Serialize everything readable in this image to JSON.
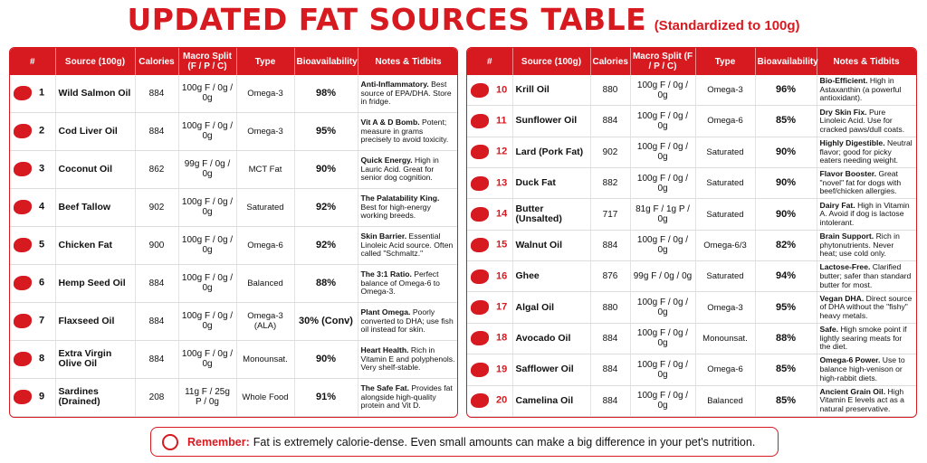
{
  "header": {
    "title": "UPDATED FAT SOURCES TABLE",
    "subtitle": "(Standardized to 100g)"
  },
  "tables": [
    {
      "columns": [
        "#",
        "Source (100g)",
        "Calories",
        "Macro Split (F / P / C)",
        "Type",
        "Bioavailability",
        "Notes & Tidbits"
      ],
      "rows": [
        {
          "no": 1,
          "source": "Wild Salmon Oil",
          "calories": 884,
          "macro": "100g F / 0g / 0g",
          "type": "Omega-3",
          "bioavailability": "98%",
          "notes_title": "Anti-Inflammatory.",
          "notes": "Best source of EPA/DHA. Store in fridge."
        },
        {
          "no": 2,
          "source": "Cod Liver Oil",
          "calories": 884,
          "macro": "100g F / 0g / 0g",
          "type": "Omega-3",
          "bioavailability": "95%",
          "notes_title": "Vit A & D Bomb.",
          "notes": "Potent; measure in grams precisely to avoid toxicity."
        },
        {
          "no": 3,
          "source": "Coconut Oil",
          "calories": 862,
          "macro": "99g F / 0g / 0g",
          "type": "MCT Fat",
          "bioavailability": "90%",
          "notes_title": "Quick Energy.",
          "notes": "High in Lauric Acid. Great for senior dog cognition."
        },
        {
          "no": 4,
          "source": "Beef Tallow",
          "calories": 902,
          "macro": "100g F / 0g / 0g",
          "type": "Saturated",
          "bioavailability": "92%",
          "notes_title": "The Palatability King.",
          "notes": "Best for high-energy working breeds."
        },
        {
          "no": 5,
          "source": "Chicken Fat",
          "calories": 900,
          "macro": "100g F / 0g / 0g",
          "type": "Omega-6",
          "bioavailability": "92%",
          "notes_title": "Skin Barrier.",
          "notes": "Essential Linoleic Acid source. Often called \"Schmaltz.\""
        },
        {
          "no": 6,
          "source": "Hemp Seed Oil",
          "calories": 884,
          "macro": "100g F / 0g / 0g",
          "type": "Balanced",
          "bioavailability": "88%",
          "notes_title": "The 3:1 Ratio.",
          "notes": "Perfect balance of Omega-6 to Omega-3."
        },
        {
          "no": 7,
          "source": "Flaxseed Oil",
          "calories": 884,
          "macro": "100g F / 0g / 0g",
          "type": "Omega-3 (ALA)",
          "bioavailability": "30% (Conv)",
          "notes_title": "Plant Omega.",
          "notes": "Poorly converted to DHA; use fish oil instead for skin."
        },
        {
          "no": 8,
          "source": "Extra Virgin Olive Oil",
          "calories": 884,
          "macro": "100g F / 0g / 0g",
          "type": "Monounsat.",
          "bioavailability": "90%",
          "notes_title": "Heart Health.",
          "notes": "Rich in Vitamin E and polyphenols. Very shelf-stable."
        },
        {
          "no": 9,
          "source": "Sardines (Drained)",
          "calories": 208,
          "macro": "11g F / 25g P / 0g",
          "type": "Whole Food",
          "bioavailability": "91%",
          "notes_title": "The Safe Fat.",
          "notes": "Provides fat alongside high-quality protein and Vit D."
        }
      ]
    },
    {
      "columns": [
        "#",
        "Source (100g)",
        "Calories",
        "Macro Split (F / P / C)",
        "Type",
        "Bioavailability",
        "Notes & Tidbits"
      ],
      "rows": [
        {
          "no": 10,
          "source": "Krill Oil",
          "calories": 880,
          "macro": "100g F / 0g / 0g",
          "type": "Omega-3",
          "bioavailability": "96%",
          "notes_title": "Bio-Efficient.",
          "notes": "High in Astaxanthin (a powerful antioxidant)."
        },
        {
          "no": 11,
          "source": "Sunflower Oil",
          "calories": 884,
          "macro": "100g F / 0g / 0g",
          "type": "Omega-6",
          "bioavailability": "85%",
          "notes_title": "Dry Skin Fix.",
          "notes": "Pure Linoleic Acid. Use for cracked paws/dull coats."
        },
        {
          "no": 12,
          "source": "Lard (Pork Fat)",
          "calories": 902,
          "macro": "100g F / 0g / 0g",
          "type": "Saturated",
          "bioavailability": "90%",
          "notes_title": "Highly Digestible.",
          "notes": "Neutral flavor; good for picky eaters needing weight."
        },
        {
          "no": 13,
          "source": "Duck Fat",
          "calories": 882,
          "macro": "100g F / 0g / 0g",
          "type": "Saturated",
          "bioavailability": "90%",
          "notes_title": "Flavor Booster.",
          "notes": "Great \"novel\" fat for dogs with beef/chicken allergies."
        },
        {
          "no": 14,
          "source": "Butter (Unsalted)",
          "calories": 717,
          "macro": "81g F / 1g P / 0g",
          "type": "Saturated",
          "bioavailability": "90%",
          "notes_title": "Dairy Fat.",
          "notes": "High in Vitamin A. Avoid if dog is lactose intolerant."
        },
        {
          "no": 15,
          "source": "Walnut Oil",
          "calories": 884,
          "macro": "100g F / 0g / 0g",
          "type": "Omega-6/3",
          "bioavailability": "82%",
          "notes_title": "Brain Support.",
          "notes": "Rich in phytonutrients. Never heat; use cold only."
        },
        {
          "no": 16,
          "source": "Ghee",
          "calories": 876,
          "macro": "99g F / 0g / 0g",
          "type": "Saturated",
          "bioavailability": "94%",
          "notes_title": "Lactose-Free.",
          "notes": "Clarified butter; safer than standard butter for most."
        },
        {
          "no": 17,
          "source": "Algal Oil",
          "calories": 880,
          "macro": "100g F / 0g / 0g",
          "type": "Omega-3",
          "bioavailability": "95%",
          "notes_title": "Vegan DHA.",
          "notes": "Direct source of DHA without the \"fishy\" heavy metals."
        },
        {
          "no": 18,
          "source": "Avocado Oil",
          "calories": 884,
          "macro": "100g F / 0g / 0g",
          "type": "Monounsat.",
          "bioavailability": "88%",
          "notes_title": "Safe.",
          "notes": "High smoke point if lightly searing meats for the diet."
        },
        {
          "no": 19,
          "source": "Safflower Oil",
          "calories": 884,
          "macro": "100g F / 0g / 0g",
          "type": "Omega-6",
          "bioavailability": "85%",
          "notes_title": "Omega-6 Power.",
          "notes": "Use to balance high-venison or high-rabbit diets."
        },
        {
          "no": 20,
          "source": "Camelina Oil",
          "calories": 884,
          "macro": "100g F / 0g / 0g",
          "type": "Balanced",
          "bioavailability": "85%",
          "notes_title": "Ancient Grain Oil.",
          "notes": "High Vitamin E levels act as a natural preservative."
        }
      ]
    }
  ],
  "footer": {
    "lead": "Remember:",
    "text": "Fat is extremely calorie-dense. Even small amounts can make a big difference in your pet's nutrition."
  }
}
